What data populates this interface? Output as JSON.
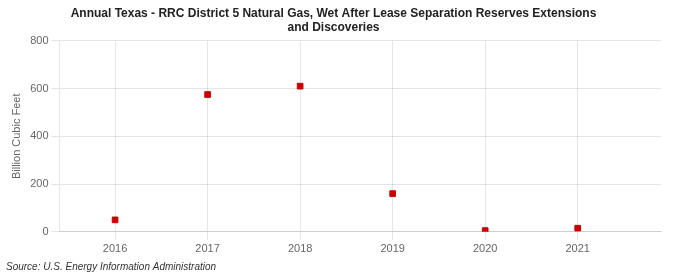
{
  "chart_data": {
    "type": "scatter",
    "title": "Annual Texas - RRC District 5 Natural Gas, Wet After Lease Separation Reserves Extensions\nand Discoveries",
    "y_label": "Billion Cubic Feet",
    "annotations": [
      "Source: U.S. Energy Information Administration"
    ],
    "x": [
      2016,
      2017,
      2018,
      2019,
      2020,
      2021
    ],
    "values": [
      50,
      575,
      610,
      160,
      5,
      15
    ],
    "color": "#cc0000",
    "marker": "square",
    "xlim": [
      2015.4,
      2021.9
    ],
    "xticks": [
      2016,
      2017,
      2018,
      2019,
      2020,
      2021
    ],
    "ylim": [
      0,
      800
    ],
    "yticks": [
      0,
      200,
      400,
      600,
      800
    ],
    "grid": true
  }
}
